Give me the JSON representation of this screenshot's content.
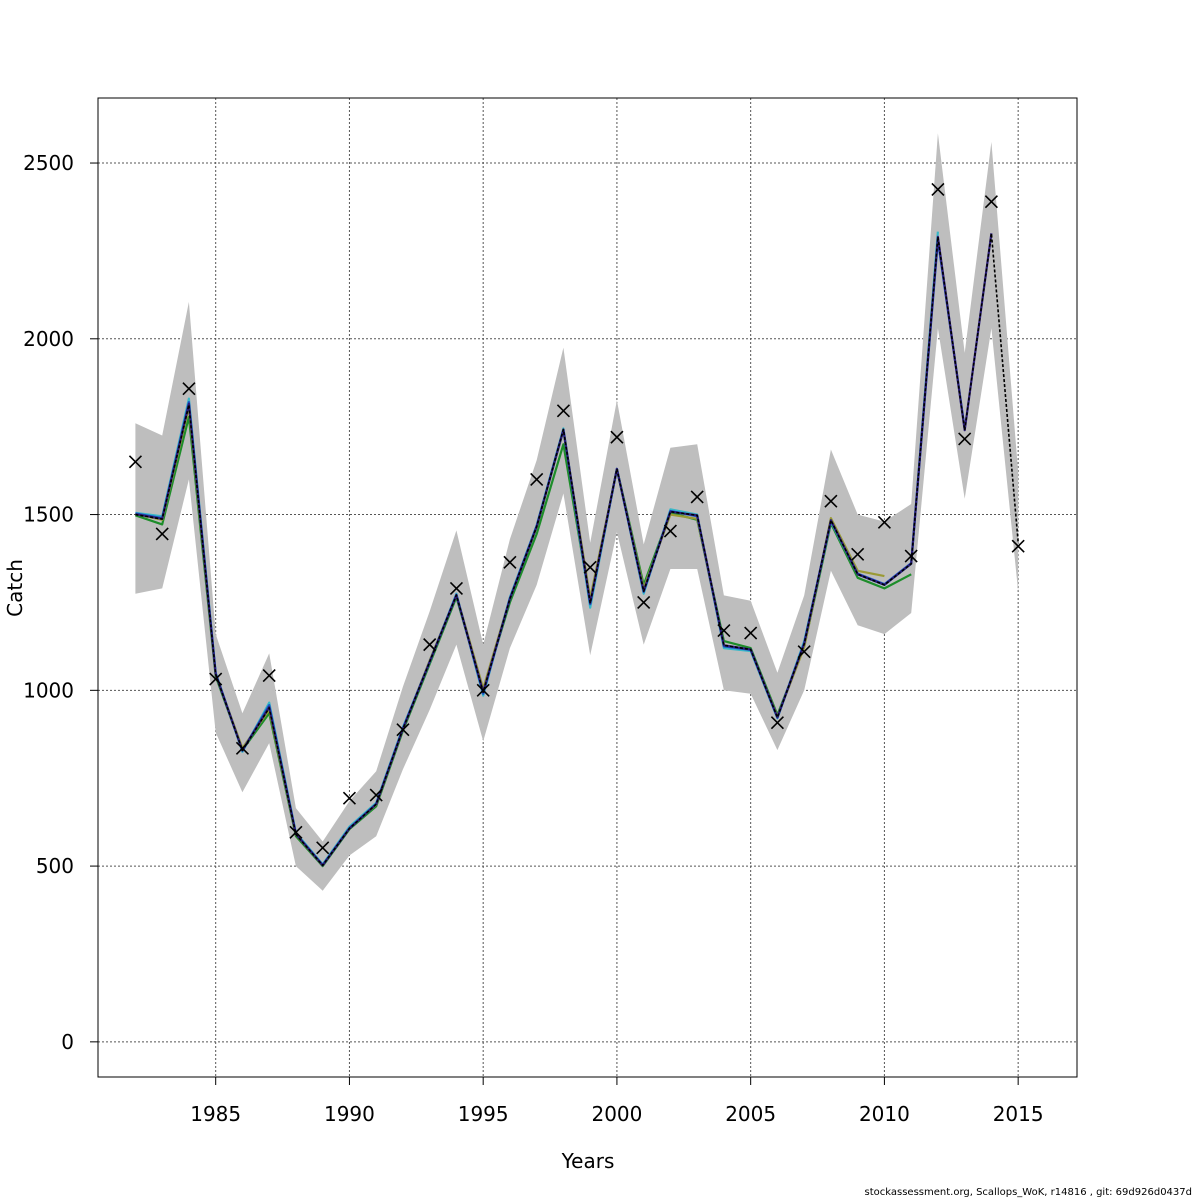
{
  "chart_data": {
    "type": "line",
    "title": "",
    "xlabel": "Years",
    "ylabel": "Catch",
    "xlim": [
      1980.6,
      2017.2
    ],
    "ylim": [
      -100,
      2685
    ],
    "xticks": [
      1985,
      1990,
      1995,
      2000,
      2005,
      2010,
      2015
    ],
    "yticks": [
      0,
      500,
      1000,
      1500,
      2000,
      2500
    ],
    "grid": true,
    "observed": {
      "marker": "x",
      "x": [
        1982,
        1983,
        1984,
        1985,
        1986,
        1987,
        1988,
        1989,
        1990,
        1991,
        1992,
        1993,
        1994,
        1995,
        1996,
        1997,
        1998,
        1999,
        2000,
        2001,
        2002,
        2003,
        2004,
        2005,
        2006,
        2007,
        2008,
        2009,
        2010,
        2011,
        2012,
        2013,
        2014,
        2015
      ],
      "y": [
        1650,
        1445,
        1858,
        1032,
        835,
        1042,
        596,
        552,
        693,
        702,
        888,
        1130,
        1290,
        1000,
        1364,
        1600,
        1795,
        1350,
        1720,
        1250,
        1453,
        1550,
        1170,
        1163,
        908,
        1110,
        1538,
        1387,
        1478,
        1382,
        2425,
        1715,
        2390,
        1410
      ]
    },
    "band": {
      "color": "#bebebe",
      "x": [
        1982,
        1983,
        1984,
        1985,
        1986,
        1987,
        1988,
        1989,
        1990,
        1991,
        1992,
        1993,
        1994,
        1995,
        1996,
        1997,
        1998,
        1999,
        2000,
        2001,
        2002,
        2003,
        2004,
        2005,
        2006,
        2007,
        2008,
        2009,
        2010,
        2011,
        2012,
        2013,
        2014,
        2015
      ],
      "lower": [
        1275,
        1290,
        1600,
        880,
        710,
        850,
        500,
        430,
        530,
        585,
        775,
        945,
        1130,
        855,
        1120,
        1300,
        1560,
        1100,
        1450,
        1130,
        1345,
        1345,
        1000,
        990,
        830,
        1000,
        1340,
        1185,
        1160,
        1220,
        2030,
        1545,
        2030,
        1280
      ],
      "upper": [
        1760,
        1725,
        2105,
        1160,
        935,
        1105,
        665,
        570,
        685,
        770,
        1010,
        1225,
        1455,
        1130,
        1430,
        1655,
        1975,
        1420,
        1825,
        1415,
        1690,
        1700,
        1270,
        1255,
        1050,
        1270,
        1685,
        1500,
        1480,
        1530,
        2585,
        1960,
        2560,
        1620
      ]
    },
    "series": [
      {
        "color": "#1d8d2a",
        "x": [
          1982,
          1983,
          1984,
          1985,
          1986,
          1987,
          1988,
          1989,
          1990,
          1991,
          1992,
          1993,
          1994,
          1995,
          1996,
          1997,
          1998,
          1999,
          2000,
          2001,
          2002,
          2003,
          2004,
          2005,
          2006,
          2007,
          2008,
          2009,
          2010,
          2011
        ],
        "y": [
          1498,
          1472,
          1778,
          1040,
          830,
          935,
          585,
          500,
          605,
          670,
          885,
          1075,
          1265,
          1000,
          1250,
          1445,
          1700,
          1250,
          1630,
          1300,
          1505,
          1485,
          1140,
          1120,
          930,
          1125,
          1475,
          1320,
          1290,
          1330
        ]
      },
      {
        "color": "#9a9a35",
        "x": [
          1982,
          1983,
          1984,
          1985,
          1986,
          1987,
          1988,
          1989,
          1990,
          1991,
          1992,
          1993,
          1994,
          1995,
          1996,
          1997,
          1998,
          1999,
          2000,
          2001,
          2002,
          2003,
          2004,
          2005,
          2006,
          2007,
          2008,
          2009,
          2010
        ],
        "y": [
          1502,
          1485,
          1805,
          1045,
          835,
          945,
          590,
          502,
          610,
          675,
          890,
          1085,
          1272,
          1005,
          1262,
          1465,
          1738,
          1262,
          1628,
          1290,
          1500,
          1488,
          1128,
          1115,
          925,
          1122,
          1490,
          1340,
          1325
        ]
      },
      {
        "color": "#38b8c8",
        "x": [
          1982,
          1983,
          1984,
          1985,
          1986,
          1987,
          1988,
          1989,
          1990,
          1991,
          1992,
          1993,
          1994,
          1995,
          1996,
          1997,
          1998,
          1999,
          2000,
          2001,
          2002,
          2003,
          2004,
          2005,
          2006,
          2007,
          2008,
          2009,
          2010,
          2011,
          2012
        ],
        "y": [
          1505,
          1495,
          1830,
          1050,
          825,
          965,
          595,
          505,
          612,
          680,
          895,
          1080,
          1275,
          985,
          1265,
          1470,
          1745,
          1235,
          1630,
          1275,
          1515,
          1500,
          1120,
          1112,
          920,
          1140,
          1480,
          1330,
          1300,
          1360,
          2305
        ]
      },
      {
        "color": "#1a55c8",
        "x": [
          1982,
          1983,
          1984,
          1985,
          1986,
          1987,
          1988,
          1989,
          1990,
          1991,
          1992,
          1993,
          1994,
          1995,
          1996,
          1997,
          1998,
          1999,
          2000,
          2001,
          2002,
          2003,
          2004,
          2005,
          2006,
          2007,
          2008,
          2009,
          2010,
          2011,
          2012,
          2013
        ],
        "y": [
          1503,
          1490,
          1820,
          1048,
          828,
          958,
          592,
          503,
          608,
          677,
          892,
          1082,
          1272,
          990,
          1262,
          1468,
          1740,
          1245,
          1630,
          1280,
          1510,
          1495,
          1125,
          1115,
          922,
          1135,
          1482,
          1332,
          1302,
          1362,
          2280,
          1745
        ]
      },
      {
        "color": "#2b1c7a",
        "x": [
          1982,
          1983,
          1984,
          1985,
          1986,
          1987,
          1988,
          1989,
          1990,
          1991,
          1992,
          1993,
          1994,
          1995,
          1996,
          1997,
          1998,
          1999,
          2000,
          2001,
          2002,
          2003,
          2004,
          2005,
          2006,
          2007,
          2008,
          2009,
          2010,
          2011,
          2012,
          2013,
          2014
        ],
        "y": [
          1501,
          1488,
          1815,
          1046,
          829,
          952,
          591,
          502,
          607,
          676,
          890,
          1081,
          1271,
          995,
          1260,
          1466,
          1742,
          1248,
          1630,
          1282,
          1508,
          1498,
          1128,
          1116,
          923,
          1132,
          1484,
          1330,
          1300,
          1360,
          2290,
          1740,
          2300
        ]
      },
      {
        "color": "#000000",
        "dashed": true,
        "x": [
          1982,
          1983,
          1984,
          1985,
          1986,
          1987,
          1988,
          1989,
          1990,
          1991,
          1992,
          1993,
          1994,
          1995,
          1996,
          1997,
          1998,
          1999,
          2000,
          2001,
          2002,
          2003,
          2004,
          2005,
          2006,
          2007,
          2008,
          2009,
          2010,
          2011,
          2012,
          2013,
          2014,
          2015
        ],
        "y": [
          1500,
          1487,
          1812,
          1045,
          829,
          950,
          590,
          502,
          607,
          676,
          890,
          1081,
          1271,
          995,
          1260,
          1466,
          1742,
          1248,
          1630,
          1282,
          1508,
          1498,
          1128,
          1116,
          923,
          1132,
          1484,
          1330,
          1300,
          1360,
          2290,
          1740,
          2300,
          1420
        ]
      }
    ]
  },
  "footer": "stockassessment.org, Scallops_WoK, r14816 , git: 69d926d0437d"
}
